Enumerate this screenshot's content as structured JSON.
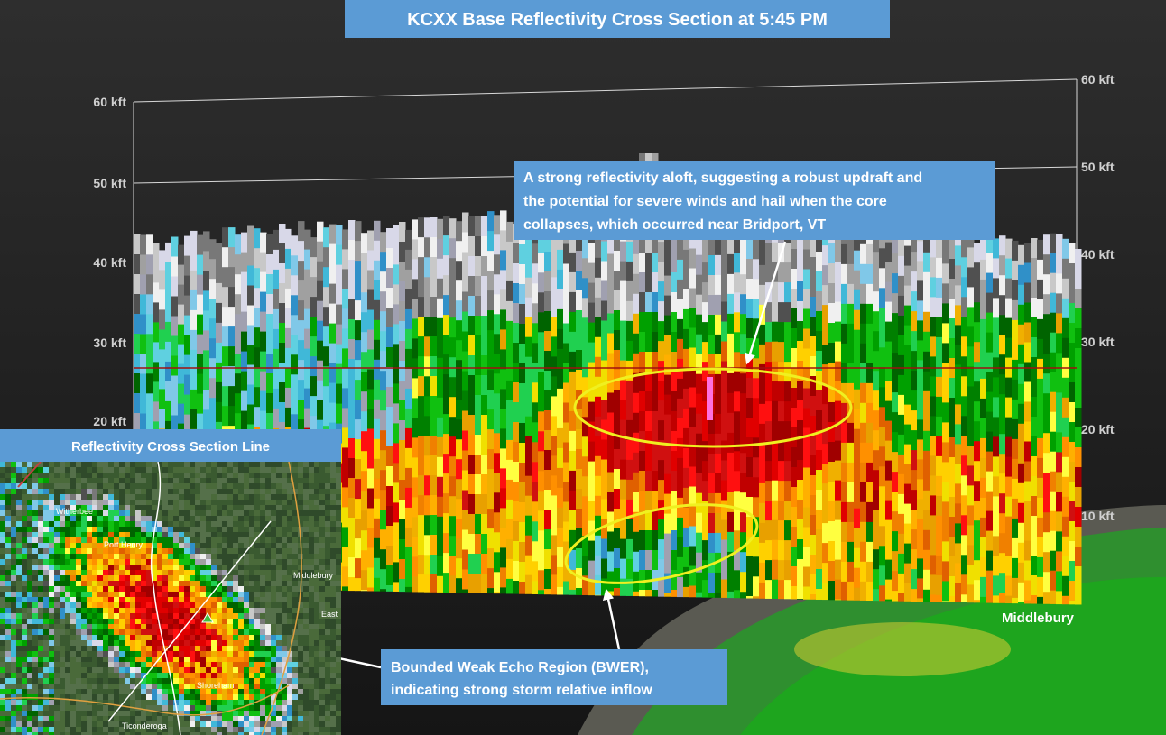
{
  "header": {
    "title": "KCXX Base Reflectivity Cross Section at 5:45 PM"
  },
  "left_axis": [
    "60 kft",
    "50 kft",
    "40 kft",
    "30 kft",
    "20 kft"
  ],
  "right_axis": [
    "60 kft",
    "50 kft",
    "40 kft",
    "30 kft",
    "20 kft",
    "10 kft"
  ],
  "endpoint_label": "Middlebury",
  "annotations": [
    {
      "lines": [
        "A strong reflectivity aloft, suggesting a robust updraft and",
        "the potential for severe winds and hail when the core",
        "collapses, which occurred near Bridport, VT"
      ]
    },
    {
      "lines": [
        "Bounded Weak Echo Region (BWER),",
        "indicating strong storm relative inflow"
      ]
    }
  ],
  "inset": {
    "title": "Reflectivity Cross Section Line",
    "places": [
      "Witherbee",
      "Port Henry",
      "Middlebury",
      "East",
      "Shoreham",
      "Ticonderoga"
    ]
  }
}
